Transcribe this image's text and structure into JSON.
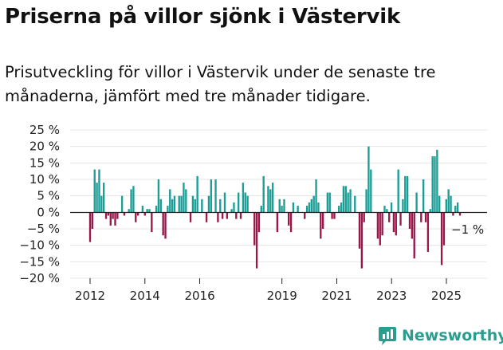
{
  "header": {
    "title": "Priserna på villor sjönk i Västervik",
    "subtitle": "Prisutveckling för villor i Västervik under de senaste tre månaderna, jämfört med tre månader tidigare."
  },
  "brand": {
    "name": "Newsworthy"
  },
  "colors": {
    "positive": "#1a9e96",
    "negative": "#99184a",
    "brand": "#2a9d8f",
    "axis": "#222222"
  },
  "chart_data": {
    "type": "bar",
    "title": "Priserna på villor sjönk i Västervik",
    "xlabel": "",
    "ylabel": "",
    "ylim": [
      -20,
      25
    ],
    "yticks": [
      25,
      20,
      15,
      10,
      5,
      0,
      -5,
      -10,
      -15,
      -20
    ],
    "ytick_labels": [
      "25 %",
      "20 %",
      "15 %",
      "10 %",
      "5 %",
      "0 %",
      "−5 %",
      "−10 %",
      "−15 %",
      "−20 %"
    ],
    "xtick_labels": [
      "2012",
      "2014",
      "2016",
      "2019",
      "2021",
      "2023",
      "2025"
    ],
    "xtick_years": [
      2012,
      2014,
      2016,
      2019,
      2021,
      2023,
      2025
    ],
    "x_start": 2012.0,
    "x_step": 0.0833,
    "unit": "%",
    "values": [
      -9,
      -5,
      13,
      9,
      13,
      5,
      9,
      -2,
      -1,
      -4,
      -2,
      -4,
      -2,
      0,
      5,
      -1,
      0,
      1,
      7,
      8,
      -3,
      -1,
      0,
      2,
      -1,
      1,
      1,
      -6,
      0,
      2,
      10,
      4,
      -7,
      -8,
      2,
      7,
      4,
      5,
      0,
      5,
      5,
      9,
      7,
      0,
      -3,
      5,
      4,
      11,
      0,
      4,
      0,
      -3,
      5,
      10,
      0,
      10,
      -3,
      4,
      -2,
      6,
      -2,
      0,
      1,
      3,
      -2,
      6,
      -2,
      9,
      6,
      5,
      0,
      0,
      -10,
      -17,
      -6,
      2,
      11,
      0,
      8,
      7,
      9,
      0,
      -6,
      4,
      2,
      4,
      0,
      -4,
      -6,
      3,
      0,
      2,
      0,
      0,
      -2,
      2,
      3,
      4,
      5,
      10,
      3,
      -8,
      -5,
      0,
      6,
      6,
      -2,
      -2,
      0,
      2,
      3,
      8,
      8,
      6,
      7,
      0,
      5,
      0,
      -11,
      -17,
      -3,
      7,
      20,
      13,
      0,
      0,
      -8,
      -10,
      -7,
      2,
      1,
      -3,
      3,
      -6,
      -7,
      13,
      -4,
      4,
      11,
      11,
      -5,
      -8,
      -14,
      6,
      0,
      -3,
      10,
      -3,
      -12,
      1,
      17,
      17,
      19,
      5,
      -16,
      -10,
      4,
      7,
      5,
      -1,
      2,
      3,
      -1
    ],
    "annotation": {
      "text": "−1 %",
      "value": -1,
      "position": "right of last bar"
    }
  }
}
